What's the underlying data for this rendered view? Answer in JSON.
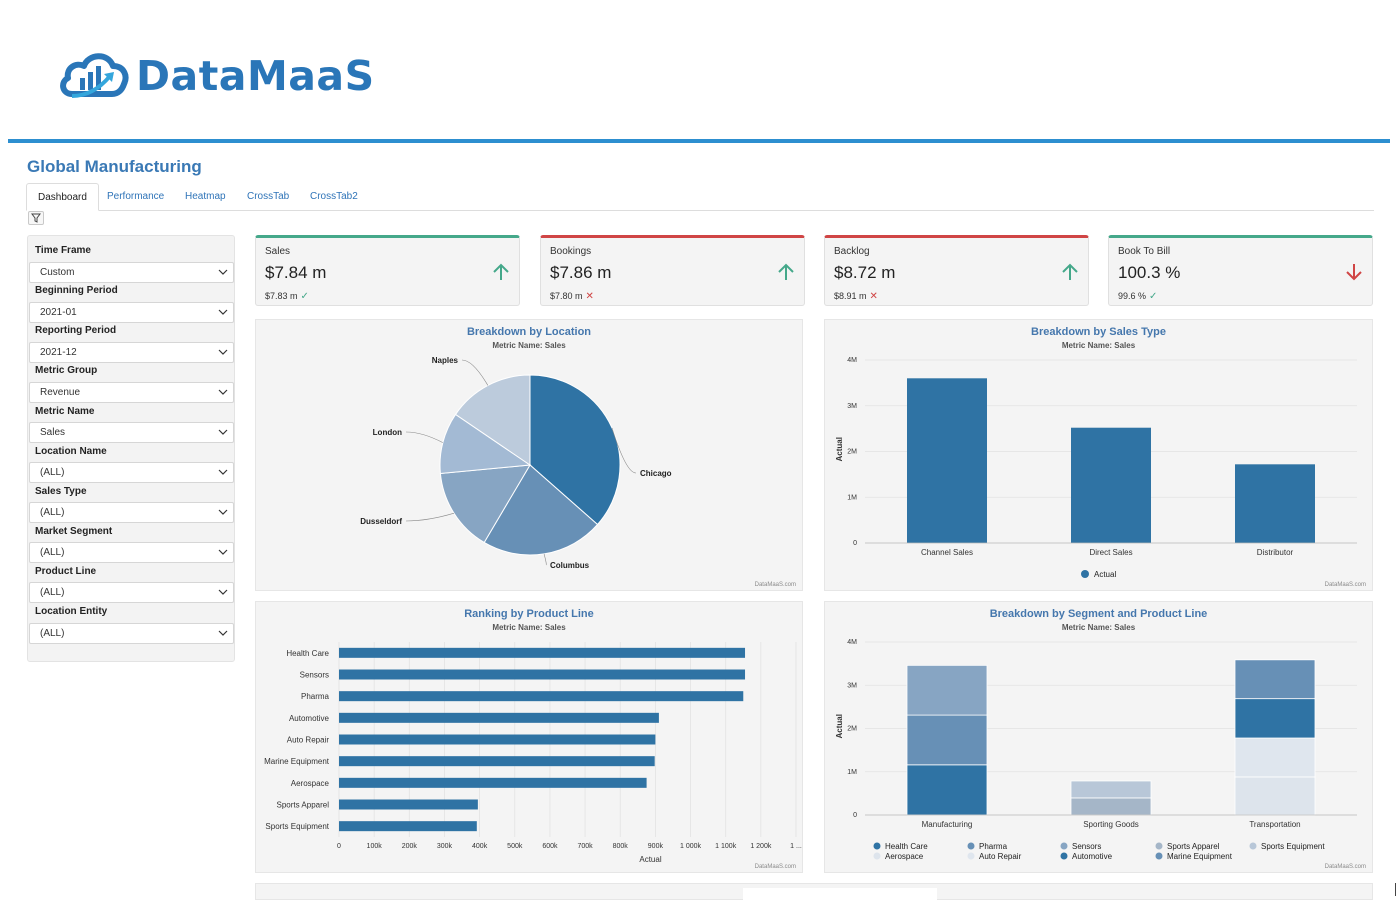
{
  "brand": {
    "name": "DataMaaS",
    "logo_icon": "cloud-chart-icon",
    "accent": "#2a76b8"
  },
  "page": {
    "title": "Global Manufacturing"
  },
  "tabs": [
    {
      "label": "Dashboard",
      "active": true
    },
    {
      "label": "Performance",
      "active": false
    },
    {
      "label": "Heatmap",
      "active": false
    },
    {
      "label": "CrossTab",
      "active": false
    },
    {
      "label": "CrossTab2",
      "active": false
    }
  ],
  "filters": [
    {
      "label": "Time Frame",
      "value": "Custom"
    },
    {
      "label": "Beginning Period",
      "value": "2021-01"
    },
    {
      "label": "Reporting Period",
      "value": "2021-12"
    },
    {
      "label": "Metric Group",
      "value": "Revenue"
    },
    {
      "label": "Metric Name",
      "value": "Sales"
    },
    {
      "label": "Location Name",
      "value": "(ALL)"
    },
    {
      "label": "Sales Type",
      "value": "(ALL)"
    },
    {
      "label": "Market Segment",
      "value": "(ALL)"
    },
    {
      "label": "Product Line",
      "value": "(ALL)"
    },
    {
      "label": "Location Entity",
      "value": "(ALL)"
    }
  ],
  "kpis": [
    {
      "title": "Sales",
      "value": "$7.84 m",
      "sub": "$7.83 m",
      "status": "ok",
      "trend": "up",
      "status_color": "#45a88a"
    },
    {
      "title": "Bookings",
      "value": "$7.86 m",
      "sub": "$7.80 m",
      "status": "bad",
      "trend": "up",
      "status_color": "#d04545"
    },
    {
      "title": "Backlog",
      "value": "$8.72 m",
      "sub": "$8.91 m",
      "status": "bad",
      "trend": "up",
      "status_color": "#d04545"
    },
    {
      "title": "Book To Bill",
      "value": "100.3 %",
      "sub": "99.6 %",
      "status": "ok",
      "trend": "down",
      "status_color": "#45a88a"
    }
  ],
  "panels": {
    "location": {
      "title": "Breakdown by Location",
      "subtitle": "Metric Name: Sales",
      "credit": "DataMaaS.com"
    },
    "sales_type": {
      "title": "Breakdown by Sales Type",
      "subtitle": "Metric Name: Sales",
      "credit": "DataMaaS.com"
    },
    "product_line": {
      "title": "Ranking by Product Line",
      "subtitle": "Metric Name: Sales",
      "credit": "DataMaaS.com"
    },
    "segment": {
      "title": "Breakdown by Segment and Product Line",
      "subtitle": "Metric Name: Sales",
      "credit": "DataMaaS.com"
    }
  },
  "chart_data": [
    {
      "type": "pie",
      "title": "Breakdown by Location",
      "subtitle": "Metric Name: Sales",
      "categories": [
        "Chicago",
        "Columbus",
        "Dusseldorf",
        "London",
        "Naples"
      ],
      "values": [
        36.5,
        22.0,
        15.0,
        11.0,
        15.5
      ],
      "colors": [
        "#2f73a4",
        "#6790b6",
        "#87a5c3",
        "#a3bad4",
        "#bccbdc"
      ]
    },
    {
      "type": "bar",
      "title": "Breakdown by Sales Type",
      "subtitle": "Metric Name: Sales",
      "categories": [
        "Channel Sales",
        "Direct Sales",
        "Distributor"
      ],
      "series": [
        {
          "name": "Actual",
          "values": [
            3600000,
            2520000,
            1720000
          ]
        }
      ],
      "ylabel": "Actual",
      "ylim": [
        0,
        4000000
      ],
      "yticks": [
        "0",
        "1M",
        "2M",
        "3M",
        "4M"
      ],
      "legend": "bottom-center",
      "color": "#2f73a4"
    },
    {
      "type": "bar",
      "orientation": "horizontal",
      "title": "Ranking by Product Line",
      "subtitle": "Metric Name: Sales",
      "categories": [
        "Health Care",
        "Sensors",
        "Pharma",
        "Automotive",
        "Auto Repair",
        "Marine Equipment",
        "Aerospace",
        "Sports Apparel",
        "Sports Equipment"
      ],
      "values": [
        1155000,
        1155000,
        1150000,
        910000,
        900000,
        898000,
        875000,
        395000,
        392000
      ],
      "xlabel": "Actual",
      "xlim": [
        0,
        1300000
      ],
      "xticks": [
        "0",
        "100k",
        "200k",
        "300k",
        "400k",
        "500k",
        "600k",
        "700k",
        "800k",
        "900k",
        "1 000k",
        "1 100k",
        "1 200k",
        "1 ..."
      ],
      "color": "#2f73a4"
    },
    {
      "type": "bar",
      "stacked": true,
      "title": "Breakdown by Segment and Product Line",
      "subtitle": "Metric Name: Sales",
      "categories": [
        "Manufacturing",
        "Sporting Goods",
        "Transportation"
      ],
      "ylabel": "Actual",
      "ylim": [
        0,
        4000000
      ],
      "yticks": [
        "0",
        "1M",
        "2M",
        "3M",
        "4M"
      ],
      "legend": "bottom",
      "series": [
        {
          "name": "Health Care",
          "color": "#2f73a4",
          "values": [
            1160000,
            0,
            0
          ]
        },
        {
          "name": "Aerospace",
          "color": "#dde4ec",
          "values": [
            0,
            0,
            880000
          ]
        },
        {
          "name": "Pharma",
          "color": "#6790b6",
          "values": [
            1150000,
            0,
            0
          ]
        },
        {
          "name": "Auto Repair",
          "color": "#dfe6ee",
          "values": [
            0,
            0,
            900000
          ]
        },
        {
          "name": "Sensors",
          "color": "#87a5c3",
          "values": [
            1150000,
            0,
            0
          ]
        },
        {
          "name": "Automotive",
          "color": "#2f73a4",
          "values": [
            0,
            0,
            910000
          ]
        },
        {
          "name": "Sports Apparel",
          "color": "#a5b6c8",
          "values": [
            0,
            395000,
            0
          ]
        },
        {
          "name": "Marine Equipment",
          "color": "#6790b6",
          "values": [
            0,
            0,
            898000
          ]
        },
        {
          "name": "Sports Equipment",
          "color": "#b8c7d8",
          "values": [
            0,
            392000,
            0
          ]
        }
      ]
    }
  ]
}
